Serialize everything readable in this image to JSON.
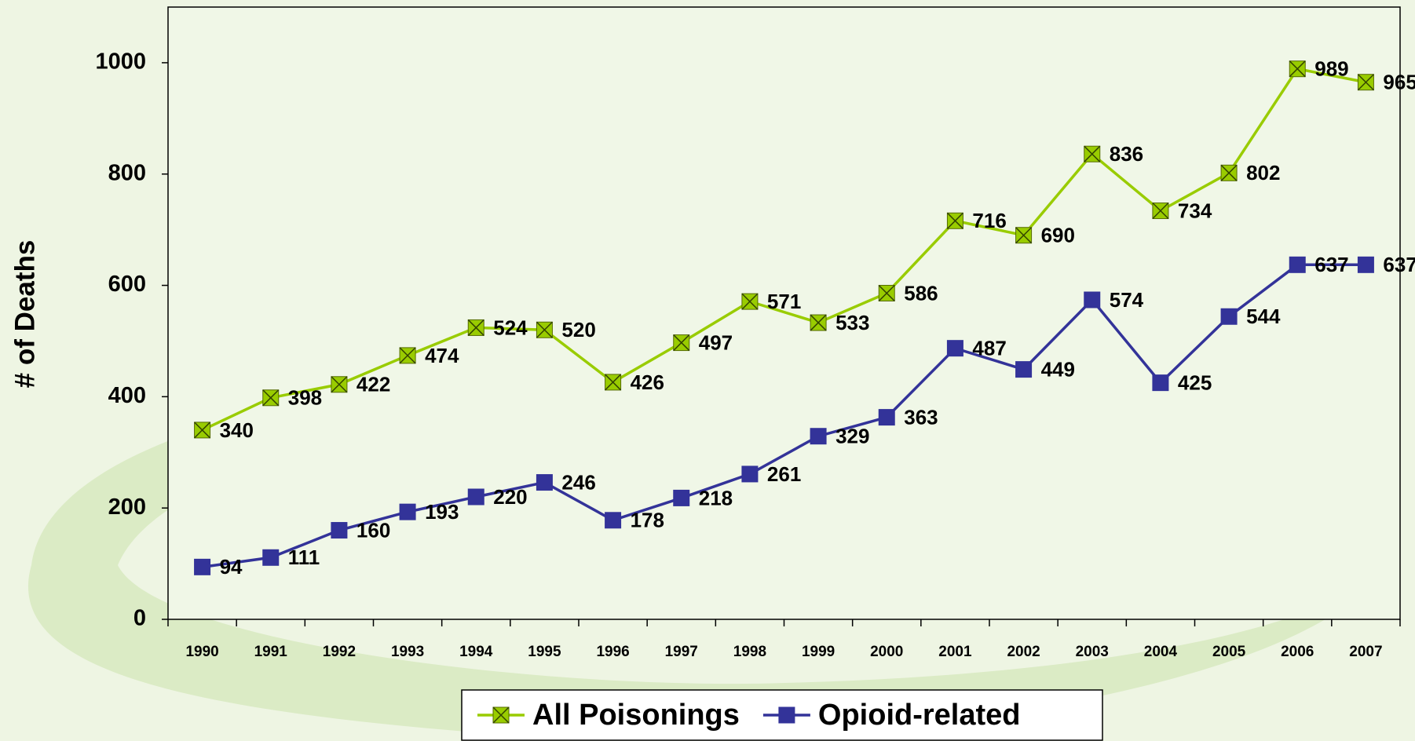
{
  "chart_data": {
    "type": "line",
    "y_label": "# of Deaths",
    "categories": [
      "1990",
      "1991",
      "1992",
      "1993",
      "1994",
      "1995",
      "1996",
      "1997",
      "1998",
      "1999",
      "2000",
      "2001",
      "2002",
      "2003",
      "2004",
      "2005",
      "2006",
      "2007"
    ],
    "series": [
      {
        "name": "All Poisonings",
        "color": "#99cc00",
        "marker": "x-square",
        "values": [
          340,
          398,
          422,
          474,
          524,
          520,
          426,
          497,
          571,
          533,
          586,
          716,
          690,
          836,
          734,
          802,
          989,
          965
        ]
      },
      {
        "name": "Opioid-related",
        "color": "#333399",
        "marker": "square",
        "values": [
          94,
          111,
          160,
          193,
          220,
          246,
          178,
          218,
          261,
          329,
          363,
          487,
          449,
          574,
          425,
          544,
          637,
          637
        ]
      }
    ],
    "ylim": [
      0,
      1100
    ],
    "yticks": [
      0,
      200,
      400,
      600,
      800,
      1000
    ],
    "legend": "bottom",
    "data_labels": true
  }
}
